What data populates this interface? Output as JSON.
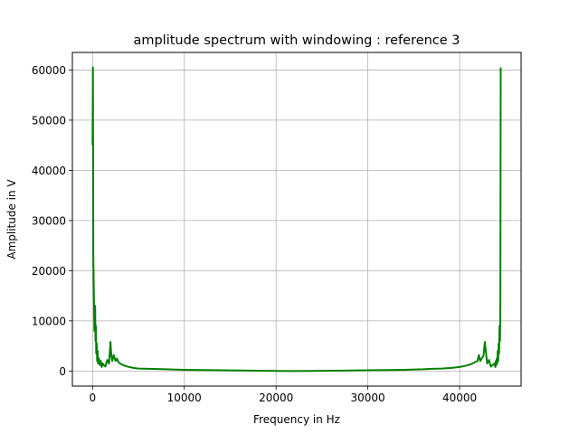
{
  "chart_data": {
    "type": "line",
    "title": "amplitude spectrum with windowing : reference 3",
    "xlabel": "Frequency in Hz",
    "ylabel": "Amplitude in V",
    "xlim": [
      -2200,
      46700
    ],
    "ylim": [
      -3000,
      63500
    ],
    "xticks": [
      0,
      10000,
      20000,
      30000,
      40000
    ],
    "yticks": [
      0,
      10000,
      20000,
      30000,
      40000,
      50000,
      60000
    ],
    "grid": true,
    "line_color": "#008000",
    "series": [
      {
        "x": [
          0,
          40,
          80,
          120,
          160,
          200,
          240,
          280,
          320,
          360,
          400,
          450,
          500,
          550,
          600,
          700,
          800,
          900,
          1000,
          1100,
          1200,
          1400,
          1600,
          1800,
          1950,
          2050,
          2150,
          2300,
          2500,
          2650,
          2800,
          3000,
          3300,
          3600,
          4000,
          4500,
          5000,
          6000,
          7000,
          8000,
          9000,
          10000,
          12000,
          14000,
          16000,
          18000,
          20000,
          22000,
          24000,
          26000,
          28000,
          30000,
          32000,
          34000,
          36000,
          37000,
          38000,
          39000,
          40000,
          40500,
          41000,
          41400,
          41700,
          41950,
          42100,
          42250,
          42400,
          42600,
          42750,
          43000,
          43200,
          43400,
          43600,
          43800,
          43900,
          43950,
          44000,
          44050,
          44100,
          44150,
          44200,
          44250,
          44300,
          44350,
          44400,
          44440,
          44480
        ],
        "values": [
          45000,
          60500,
          23000,
          18000,
          13000,
          8000,
          11000,
          13000,
          6000,
          9000,
          3500,
          5500,
          2000,
          4000,
          1500,
          2500,
          1200,
          2000,
          800,
          1500,
          1200,
          900,
          2200,
          1500,
          5800,
          3000,
          2000,
          3200,
          2000,
          2500,
          1800,
          1500,
          1200,
          1000,
          800,
          600,
          500,
          450,
          400,
          350,
          300,
          250,
          200,
          150,
          100,
          60,
          20,
          0,
          20,
          60,
          100,
          150,
          200,
          250,
          350,
          450,
          500,
          600,
          800,
          1000,
          1200,
          1500,
          1800,
          2000,
          3200,
          2000,
          2500,
          3000,
          5800,
          1500,
          2200,
          900,
          1200,
          1500,
          800,
          2000,
          1200,
          2500,
          1500,
          4000,
          2000,
          5500,
          3500,
          9000,
          6000,
          13000,
          60500
        ]
      }
    ]
  }
}
